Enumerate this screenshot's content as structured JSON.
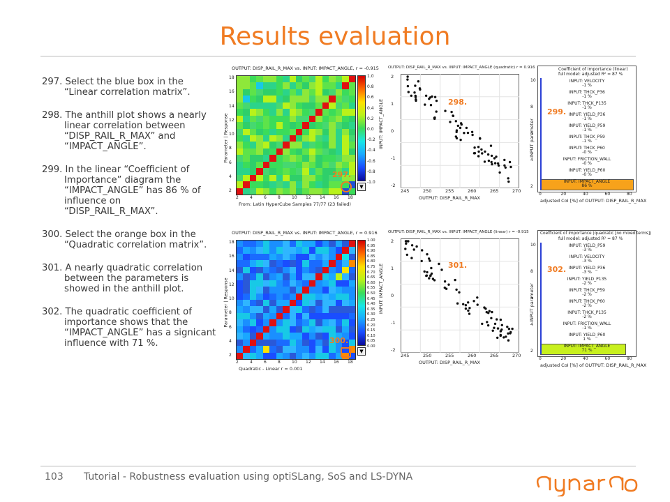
{
  "slide": {
    "title": "Results evaluation",
    "page_number": "103",
    "footer": "Tutorial - Robustness evaluation using optiSLang, SoS and LS-DYNA",
    "logo": "dynardo"
  },
  "steps": [
    "297. Select the blue box in the “Linear correlation matrix”.",
    "298. The anthill plot shows a nearly linear correlation between “DISP_RAIL_R_MAX” and “IMPACT_ANGLE”.",
    "299. In the linear “Coefficient of Importance” diagram the “IMPACT_ANGLE” has 86 % of influence on “DISP_RAIL_R_MAX”.",
    "300. Select the orange box in the “Quadratic correlation matrix”.",
    "301. A nearly quadratic correlation between the parameters is showed in the anthill plot.",
    "302. The quadratic coefficient of importance shows that the “IMPACT_ANGLE” has a signicant influence with 71 %."
  ],
  "linear_matrix": {
    "title": "OUTPUT: DISP_RAIL_R_MAX vs. INPUT: IMPACT_ANGLE, r = -0.915",
    "ylabel": "Parameter | Response",
    "xlabel": "From: Latin HyperCube    Samples 77/77 (23 failed)",
    "ticks": [
      "2",
      "4",
      "6",
      "8",
      "10",
      "12",
      "14",
      "16",
      "18"
    ],
    "colorbar": [
      "1.0",
      "0.8",
      "0.6",
      "0.4",
      "0.2",
      "0.0",
      "-0.2",
      "-0.4",
      "-0.6",
      "-0.8",
      "-1.0"
    ],
    "marker_label": "297."
  },
  "quad_matrix": {
    "title": "OUTPUT: DISP_RAIL_R_MAX vs. INPUT: IMPACT_ANGLE, r = 0.916",
    "ylabel": "Parameter | Response",
    "xlabel": "Quadratic - Linear   r = 0.001",
    "ticks": [
      "2",
      "4",
      "6",
      "8",
      "10",
      "12",
      "14",
      "16",
      "18"
    ],
    "colorbar": [
      "1.00",
      "0.95",
      "0.90",
      "0.85",
      "0.80",
      "0.75",
      "0.70",
      "0.65",
      "0.60",
      "0.55",
      "0.50",
      "0.45",
      "0.40",
      "0.35",
      "0.30",
      "0.25",
      "0.20",
      "0.15",
      "0.10",
      "0.05",
      "0.00"
    ],
    "marker_label": "300."
  },
  "anthill_linear": {
    "title": "OUTPUT: DISP_RAIL_R_MAX vs. INPUT: IMPACT_ANGLE (quadratic) r = 0.916",
    "xlabel": "OUTPUT: DISP_RAIL_R_MAX",
    "ylabel": "INPUT: IMPACT_ANGLE",
    "xticks": [
      "245",
      "250",
      "255",
      "260",
      "265",
      "270"
    ],
    "yticks": [
      "2",
      "1",
      "0",
      "-1",
      "-2"
    ],
    "label": "298."
  },
  "anthill_quad": {
    "title": "OUTPUT: DISP_RAIL_R_MAX vs. INPUT: IMPACT_ANGLE (linear) r = -0.915",
    "xlabel": "OUTPUT: DISP_RAIL_R_MAX",
    "ylabel": "INPUT: IMPACT_ANGLE",
    "xticks": [
      "245",
      "250",
      "255",
      "260",
      "265",
      "270"
    ],
    "yticks": [
      "2",
      "1",
      "0",
      "-1",
      "-2"
    ],
    "label": "301."
  },
  "coi_linear": {
    "title": "Coefficient of Importance (linear)",
    "subtitle": "full model: adjusted R² = 87 %",
    "ylabel": "INPUT parameter",
    "xlabel": "adjusted CoI [%] of OUTPUT: DISP_RAIL_R_MAX",
    "xticks": [
      "0",
      "20",
      "40",
      "60",
      "80"
    ],
    "yticks": [
      "10",
      "8",
      "6",
      "4",
      "2"
    ],
    "label": "299.",
    "bar_color": "#f7a21b",
    "items": [
      {
        "name": "INPUT: VELOCITY",
        "pct": "-1 %"
      },
      {
        "name": "INPUT: THCK_P36",
        "pct": "-1 %"
      },
      {
        "name": "INPUT: THCK_P135",
        "pct": "-1 %"
      },
      {
        "name": "INPUT: YIELD_P36",
        "pct": "-1 %"
      },
      {
        "name": "INPUT: YIELD_P59",
        "pct": "-1 %"
      },
      {
        "name": "INPUT: THCK_P59",
        "pct": "-1 %"
      },
      {
        "name": "INPUT: THCK_P60",
        "pct": "-0 %"
      },
      {
        "name": "INPUT: FRICTION_WALL",
        "pct": "-0 %"
      },
      {
        "name": "INPUT: YIELD_P60",
        "pct": "-0 %"
      },
      {
        "name": "INPUT: IMPACT_ANGLE",
        "pct": "86 %"
      }
    ]
  },
  "coi_quad": {
    "title": "Coefficient of Importance (quadratic [no mixed terms])",
    "subtitle": "full model: adjusted R² = 87 %",
    "ylabel": "INPUT parameter",
    "xlabel": "adjusted CoI [%] of OUTPUT: DISP_RAIL_R_MAX",
    "xticks": [
      "0",
      "20",
      "40",
      "60",
      "80"
    ],
    "yticks": [
      "10",
      "8",
      "6",
      "4",
      "2"
    ],
    "label": "302.",
    "bar_color": "#c8f01e",
    "items": [
      {
        "name": "INPUT: YIELD_P59",
        "pct": "-3 %"
      },
      {
        "name": "INPUT: VELOCITY",
        "pct": "-3 %"
      },
      {
        "name": "INPUT: YIELD_P36",
        "pct": "-3 %"
      },
      {
        "name": "INPUT: YIELD_P135",
        "pct": "-2 %"
      },
      {
        "name": "INPUT: THCK_P59",
        "pct": "-2 %"
      },
      {
        "name": "INPUT: THCK_P60",
        "pct": "-2 %"
      },
      {
        "name": "INPUT: THCK_P135",
        "pct": "-2 %"
      },
      {
        "name": "INPUT: FRICTION_WALL",
        "pct": "-1 %"
      },
      {
        "name": "INPUT: YIELD_P60",
        "pct": "1 %"
      },
      {
        "name": "INPUT: IMPACT_ANGLE",
        "pct": "71 %"
      }
    ]
  },
  "colors": {
    "accent": "#f07b22",
    "marker_blue": "#1f4fd6"
  }
}
